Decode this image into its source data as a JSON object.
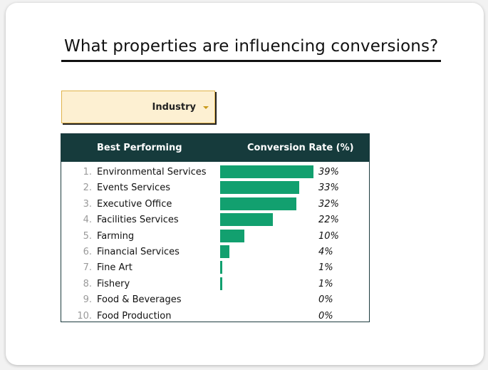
{
  "title": "What properties are influencing conversions?",
  "dropdown": {
    "label": "Industry"
  },
  "table": {
    "headers": {
      "name": "Best Performing",
      "rate": "Conversion Rate (%)"
    },
    "rows": [
      {
        "rank": "1.",
        "name": "Environmental Services",
        "rate": "39%",
        "value": 39
      },
      {
        "rank": "2.",
        "name": "Events Services",
        "rate": "33%",
        "value": 33
      },
      {
        "rank": "3.",
        "name": "Executive Office",
        "rate": "32%",
        "value": 32
      },
      {
        "rank": "4.",
        "name": "Facilities Services",
        "rate": "22%",
        "value": 22
      },
      {
        "rank": "5.",
        "name": "Farming",
        "rate": "10%",
        "value": 10
      },
      {
        "rank": "6.",
        "name": "Financial Services",
        "rate": "4%",
        "value": 4
      },
      {
        "rank": "7.",
        "name": "Fine Art",
        "rate": "1%",
        "value": 1
      },
      {
        "rank": "8.",
        "name": "Fishery",
        "rate": "1%",
        "value": 1
      },
      {
        "rank": "9.",
        "name": "Food & Beverages",
        "rate": "0%",
        "value": 0
      },
      {
        "rank": "10.",
        "name": "Food Production",
        "rate": "0%",
        "value": 0
      }
    ]
  },
  "colors": {
    "header_bg": "#163b3c",
    "bar": "#12a06f",
    "dropdown_bg": "#fdf0d2",
    "caret": "#c99a1a"
  },
  "icons": {
    "dropdown_caret": "caret-down-icon"
  }
}
